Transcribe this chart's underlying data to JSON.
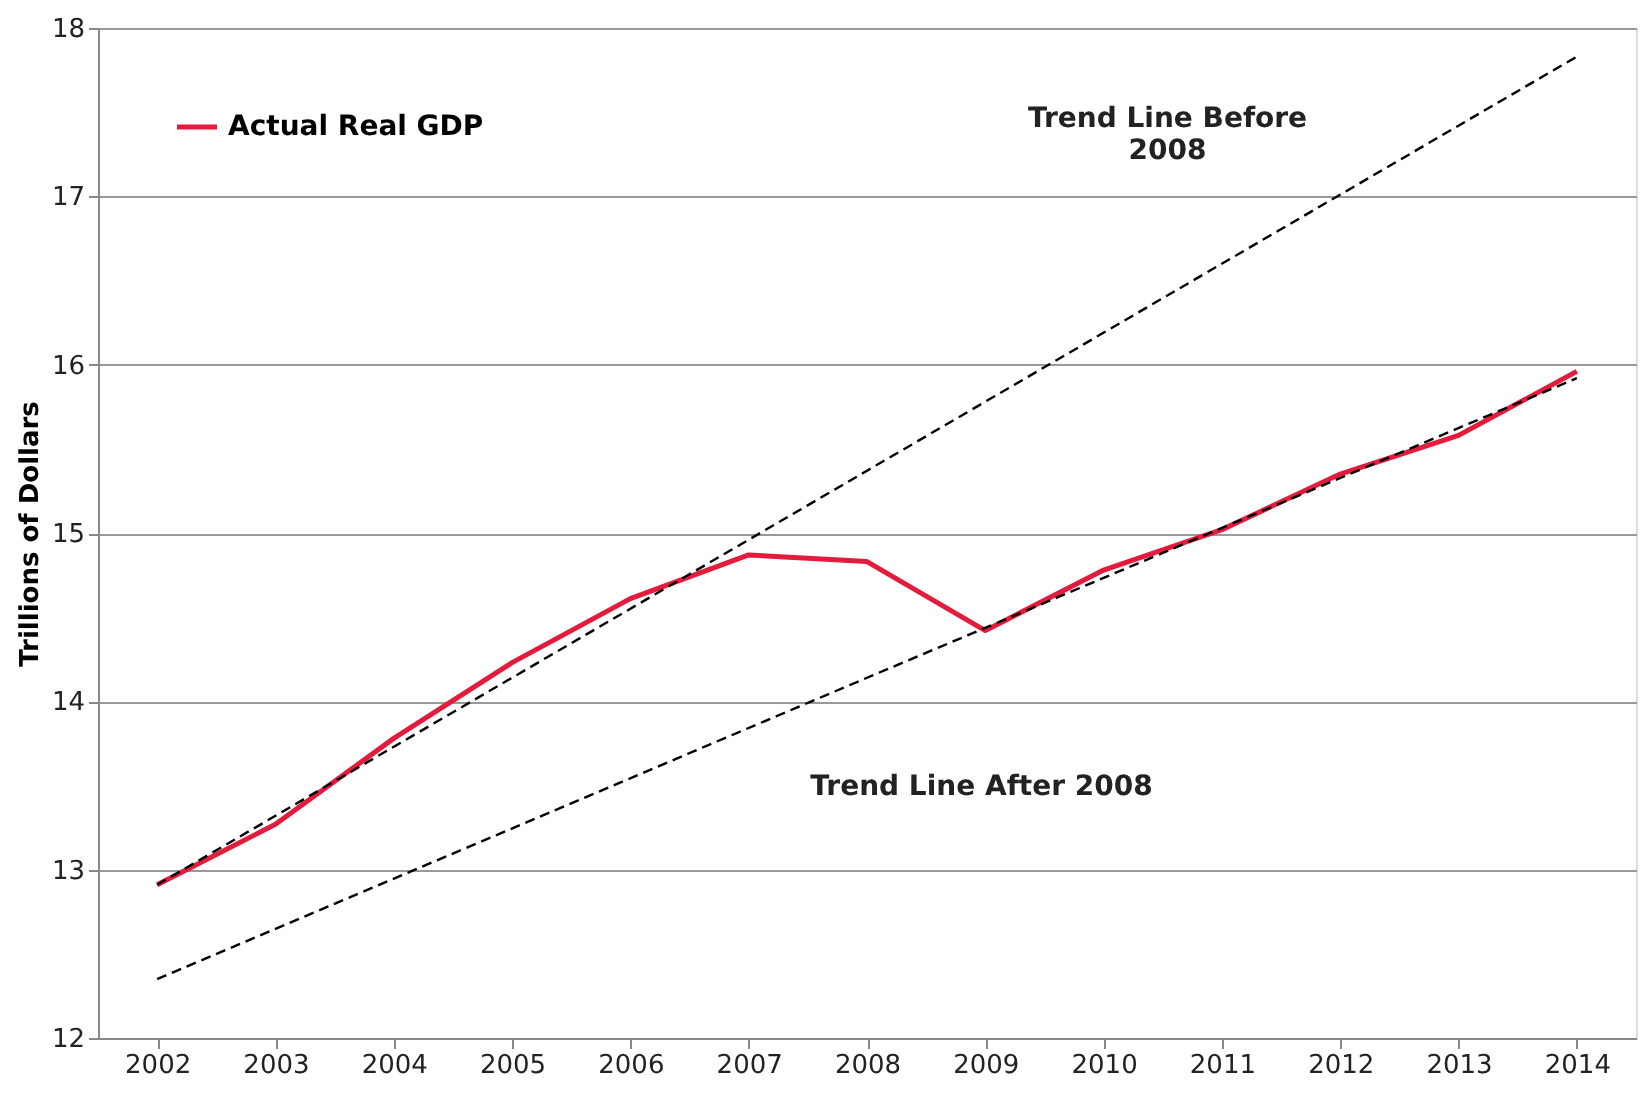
{
  "chart_data": {
    "type": "line",
    "ylabel": "Trillions of Dollars",
    "x": [
      2002,
      2003,
      2004,
      2005,
      2006,
      2007,
      2008,
      2009,
      2010,
      2011,
      2012,
      2013,
      2014
    ],
    "xlim": [
      2001.5,
      2014.5
    ],
    "xticks": [
      2002,
      2003,
      2004,
      2005,
      2006,
      2007,
      2008,
      2009,
      2010,
      2011,
      2012,
      2013,
      2014
    ],
    "ylim": [
      12,
      18
    ],
    "yticks": [
      12,
      13,
      14,
      15,
      16,
      17,
      18
    ],
    "grid": "y",
    "legend": "top left",
    "marker": "none",
    "series": [
      {
        "name": "Actual Real GDP",
        "color": "#e31b3c",
        "line_style": "solid",
        "values": [
          12.91,
          13.27,
          13.78,
          14.23,
          14.61,
          14.87,
          14.83,
          14.42,
          14.78,
          15.02,
          15.35,
          15.58,
          15.96
        ]
      },
      {
        "color": "#000000",
        "line_style": "dashed",
        "x": [
          2002,
          2008,
          2014
        ],
        "values": [
          12.91,
          15.37,
          17.83
        ]
      },
      {
        "color": "#000000",
        "line_style": "dashed",
        "x": [
          2002,
          2008,
          2014
        ],
        "values": [
          12.35,
          14.14,
          15.92
        ]
      }
    ],
    "annotations": [
      "Trend Line Before\n2008",
      "Trend Line After 2008"
    ]
  }
}
